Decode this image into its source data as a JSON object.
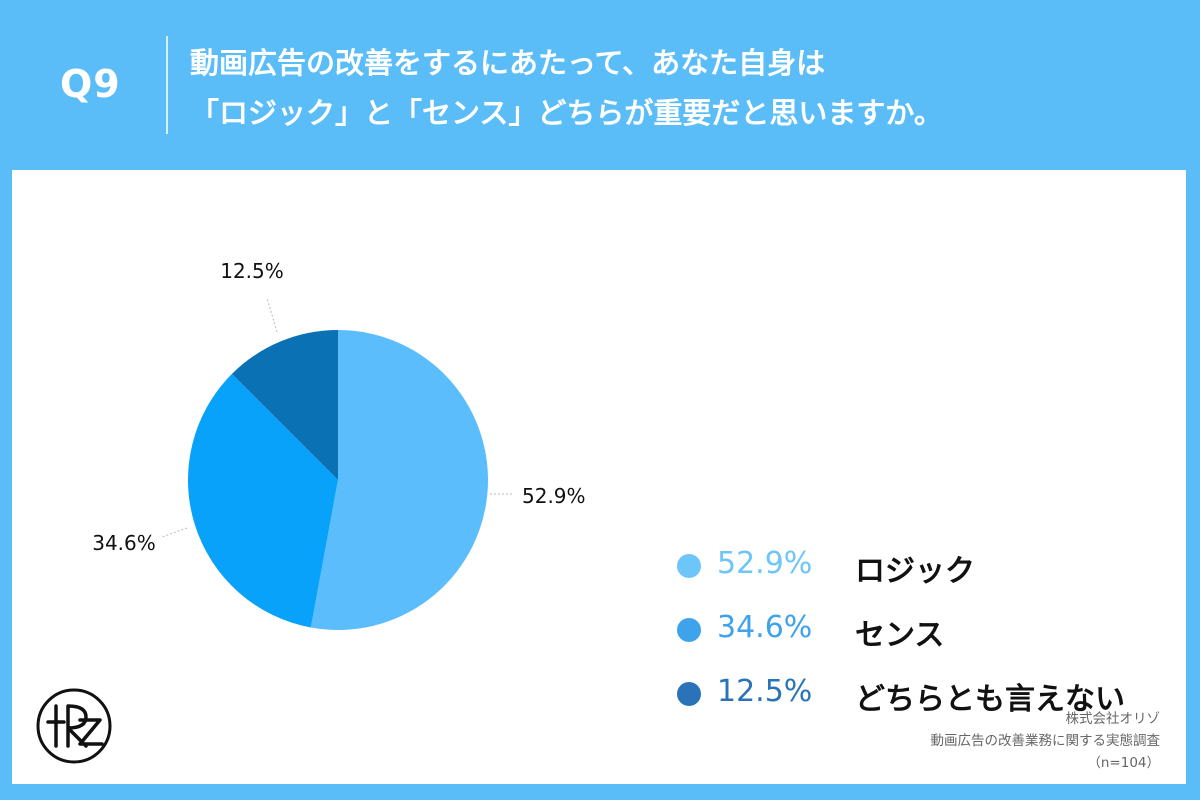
{
  "header": {
    "q_label": "Q9",
    "question_line1": "動画広告の改善をするにあたって、あなた自身は",
    "question_line2": "「ロジック」と「センス」どちらが重要だと思いますか。"
  },
  "chart_data": {
    "type": "pie",
    "slices": [
      {
        "label": "ロジック",
        "value": 52.9,
        "display": "52.9%",
        "color": "#5bbdfb",
        "legend_color": "#6ec5fa"
      },
      {
        "label": "センス",
        "value": 34.6,
        "display": "34.6%",
        "color": "#08a2fa",
        "legend_color": "#3fa3ec"
      },
      {
        "label": "どちらとも言えない",
        "value": 12.5,
        "display": "12.5%",
        "color": "#0a71b4",
        "legend_color": "#2a73b8"
      }
    ],
    "legend_position": "right"
  },
  "source": {
    "line1": "株式会社オリゾ",
    "line2": "動画広告の改善業務に関する実態調査",
    "line3": "（n=104）"
  },
  "logo_text": "ORZ"
}
